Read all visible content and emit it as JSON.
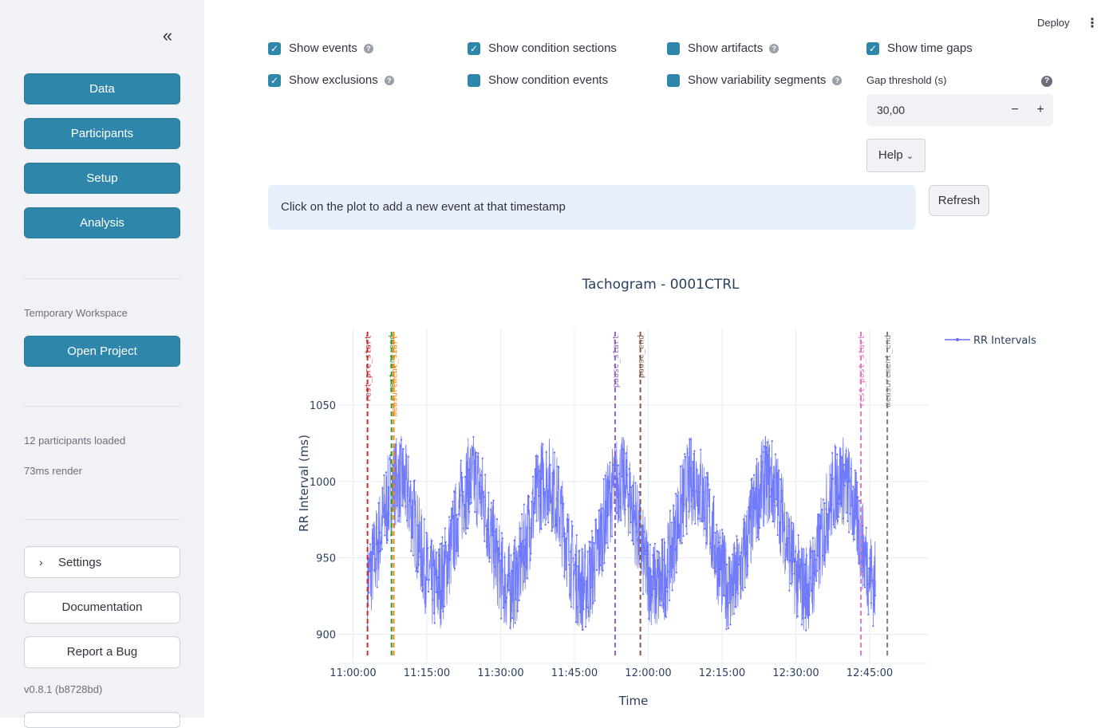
{
  "sidebar": {
    "nav": [
      "Data",
      "Participants",
      "Setup",
      "Analysis"
    ],
    "workspace_label": "Temporary Workspace",
    "open_project": "Open Project",
    "participants_loaded": "12 participants loaded",
    "render_time": "73ms render",
    "settings": "Settings",
    "documentation": "Documentation",
    "report_bug": "Report a Bug",
    "version": "v0.8.1 (b8728bd)",
    "collapse_icon": "double-chevron-left-icon"
  },
  "header": {
    "deploy": "Deploy",
    "menu_icon": "kebab-menu-icon"
  },
  "options": {
    "show_events": "Show events",
    "show_condition_sections": "Show condition sections",
    "show_artifacts": "Show artifacts",
    "show_time_gaps": "Show time gaps",
    "show_exclusions": "Show exclusions",
    "show_condition_events": "Show condition events",
    "show_variability_segments": "Show variability segments",
    "gap_threshold_label": "Gap threshold (s)",
    "gap_threshold_value": "30,00",
    "decrement": "−",
    "increment": "+",
    "help": "Help"
  },
  "info": {
    "message": "Click on the plot to add a new event at that timestamp"
  },
  "refresh": "Refresh",
  "colors": {
    "accent": "#2e86ab",
    "series": "#636efa",
    "info_bg": "#e8f1fb"
  },
  "chart_data": {
    "type": "line",
    "title": "Tachogram - 0001CTRL",
    "xlabel": "Time",
    "ylabel": "RR Interval (ms)",
    "x_tick_labels": [
      "11:00:00",
      "11:15:00",
      "11:30:00",
      "11:45:00",
      "12:00:00",
      "12:15:00",
      "12:30:00",
      "12:45:00"
    ],
    "y_tick_labels": [
      "900",
      "950",
      "1000",
      "1050"
    ],
    "xlim_minutes_after_11": [
      -3,
      117
    ],
    "ylim": [
      881,
      1100
    ],
    "legend": {
      "placement": "top-right",
      "entries": [
        "RR Intervals"
      ]
    },
    "series": [
      {
        "name": "RR Intervals",
        "time_range": [
          "11:02:56",
          "12:46:11"
        ],
        "mean": 966,
        "oscillation_period_minutes": 15,
        "oscillation_amplitude": 35,
        "noise_amplitude": 30,
        "observed_min": 892,
        "observed_max": 1050
      }
    ],
    "events": [
      {
        "label": "rest_pre_start",
        "time": "11:02:56",
        "color": "#d62728"
      },
      {
        "label": "rest_pre_end",
        "time": "11:07:49",
        "color": "#2ca02c"
      },
      {
        "label": "measurement_start",
        "time": "11:08:16",
        "color": "#ff7f0e"
      },
      {
        "label": "pause_start",
        "time": "11:53:16",
        "color": "#9467bd"
      },
      {
        "label": "pause_end",
        "time": "11:58:24",
        "color": "#8c564b"
      },
      {
        "label": "rest_post_start",
        "time": "12:43:13",
        "color": "#e377c2"
      },
      {
        "label": "measurement_end",
        "time": "12:48:35",
        "color": "#7f7f7f"
      }
    ],
    "grid": true
  }
}
